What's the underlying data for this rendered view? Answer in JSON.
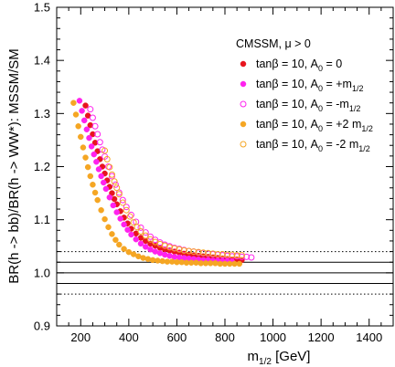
{
  "chart_data": {
    "type": "scatter",
    "xlabel_main": "m",
    "xlabel_sub": "1/2",
    "xlabel_unit": " [GeV]",
    "ylabel": "BR(h -> bb)/BR(h -> WW*): MSSM/SM",
    "xlim": [
      100,
      1500
    ],
    "ylim": [
      0.9,
      1.5
    ],
    "xticks": [
      "200",
      "400",
      "600",
      "800",
      "1000",
      "1200",
      "1400"
    ],
    "yticks": [
      "0.9",
      "1.0",
      "1.1",
      "1.2",
      "1.3",
      "1.4",
      "1.5"
    ],
    "grid": false,
    "legend_title": "CMSSM, μ > 0",
    "legend_position": "top-right",
    "reference_lines": [
      {
        "y": 1.0,
        "style": "solid"
      },
      {
        "y": 1.02,
        "style": "solid"
      },
      {
        "y": 0.98,
        "style": "solid"
      },
      {
        "y": 1.04,
        "style": "dotted"
      },
      {
        "y": 0.96,
        "style": "dotted"
      }
    ],
    "series": [
      {
        "name": "tanβ = 10, A0 = 0",
        "label_parts": [
          "tanβ = 10, A",
          "0",
          " = 0",
          ""
        ],
        "color": "#e8141e",
        "marker": "filled-circle",
        "x": [
          220,
          230,
          240,
          250,
          260,
          270,
          280,
          290,
          300,
          310,
          320,
          330,
          340,
          350,
          365,
          380,
          395,
          410,
          430,
          450,
          470,
          490,
          510,
          530,
          550,
          570,
          590,
          610,
          630,
          650,
          670,
          690,
          710,
          730,
          750,
          770,
          790,
          810,
          830,
          850,
          870
        ],
        "y": [
          1.315,
          1.296,
          1.278,
          1.261,
          1.245,
          1.229,
          1.214,
          1.2,
          1.187,
          1.174,
          1.162,
          1.15,
          1.139,
          1.129,
          1.116,
          1.104,
          1.093,
          1.083,
          1.074,
          1.066,
          1.06,
          1.055,
          1.051,
          1.047,
          1.044,
          1.042,
          1.04,
          1.038,
          1.036,
          1.034,
          1.033,
          1.032,
          1.031,
          1.03,
          1.029,
          1.028,
          1.027,
          1.026,
          1.025,
          1.025,
          1.024
        ]
      },
      {
        "name": "tanβ = 10, A0 = +m1/2",
        "label_parts": [
          "tanβ = 10, A",
          "0",
          " = +m",
          "1/2"
        ],
        "color": "#ff22ee",
        "marker": "filled-circle",
        "x": [
          195,
          205,
          215,
          225,
          235,
          245,
          255,
          265,
          275,
          285,
          295,
          305,
          320,
          335,
          350,
          365,
          380,
          395,
          410,
          430,
          450,
          470,
          490,
          510,
          530,
          550,
          570,
          590,
          610,
          630,
          650,
          670,
          690,
          710,
          730,
          750,
          770,
          790,
          810,
          830
        ],
        "y": [
          1.324,
          1.305,
          1.287,
          1.27,
          1.254,
          1.238,
          1.223,
          1.209,
          1.195,
          1.182,
          1.17,
          1.158,
          1.142,
          1.127,
          1.114,
          1.102,
          1.091,
          1.081,
          1.072,
          1.063,
          1.055,
          1.049,
          1.044,
          1.04,
          1.037,
          1.034,
          1.032,
          1.03,
          1.029,
          1.028,
          1.027,
          1.026,
          1.025,
          1.024,
          1.024,
          1.023,
          1.023,
          1.022,
          1.022,
          1.021
        ]
      },
      {
        "name": "tanβ = 10, A0 = -m1/2",
        "label_parts": [
          "tanβ = 10, A",
          "0",
          " = -m",
          "1/2"
        ],
        "color": "#ff22ee",
        "marker": "open-circle",
        "x": [
          240,
          250,
          260,
          270,
          280,
          290,
          300,
          315,
          330,
          345,
          360,
          375,
          390,
          410,
          430,
          450,
          470,
          490,
          510,
          530,
          550,
          570,
          590,
          610,
          630,
          650,
          670,
          690,
          710,
          730,
          750,
          770,
          790,
          810,
          830,
          850,
          870,
          890,
          910
        ],
        "y": [
          1.308,
          1.292,
          1.276,
          1.261,
          1.246,
          1.232,
          1.219,
          1.2,
          1.182,
          1.166,
          1.151,
          1.137,
          1.124,
          1.109,
          1.096,
          1.085,
          1.076,
          1.068,
          1.062,
          1.057,
          1.053,
          1.05,
          1.047,
          1.045,
          1.043,
          1.041,
          1.04,
          1.038,
          1.037,
          1.036,
          1.035,
          1.034,
          1.033,
          1.032,
          1.031,
          1.031,
          1.03,
          1.03,
          1.029
        ]
      },
      {
        "name": "tanβ = 10, A0 = +2 m1/2",
        "label_parts": [
          "tanβ = 10, A",
          "0",
          " = +2 m",
          "1/2"
        ],
        "color": "#f5a623",
        "marker": "filled-circle",
        "x": [
          170,
          180,
          190,
          200,
          210,
          220,
          230,
          240,
          250,
          260,
          270,
          285,
          300,
          315,
          330,
          345,
          360,
          380,
          400,
          420,
          440,
          460,
          480,
          500,
          520,
          540,
          560,
          580,
          600,
          620,
          640,
          660,
          680,
          700,
          720,
          740,
          760,
          780,
          800,
          820,
          840,
          860
        ],
        "y": [
          1.32,
          1.298,
          1.276,
          1.256,
          1.236,
          1.217,
          1.199,
          1.182,
          1.166,
          1.151,
          1.137,
          1.118,
          1.101,
          1.086,
          1.073,
          1.062,
          1.053,
          1.045,
          1.039,
          1.035,
          1.031,
          1.028,
          1.026,
          1.024,
          1.023,
          1.022,
          1.021,
          1.021,
          1.02,
          1.02,
          1.019,
          1.019,
          1.019,
          1.018,
          1.018,
          1.018,
          1.018,
          1.017,
          1.017,
          1.017,
          1.017,
          1.017
        ]
      },
      {
        "name": "tanβ = 10, A0 = -2 m1/2",
        "label_parts": [
          "tanβ = 10, A",
          "0",
          " = -2 m",
          "1/2"
        ],
        "color": "#f5a623",
        "marker": "open-circle",
        "x": [
          300,
          310,
          320,
          330,
          340,
          350,
          360,
          375,
          390,
          405,
          420,
          435,
          450,
          470,
          490,
          510,
          530,
          550,
          570,
          590,
          610,
          630,
          650,
          670,
          690,
          710,
          730,
          750,
          770,
          790,
          810,
          830,
          850,
          870
        ],
        "y": [
          1.23,
          1.214,
          1.199,
          1.185,
          1.172,
          1.16,
          1.148,
          1.132,
          1.118,
          1.106,
          1.095,
          1.086,
          1.078,
          1.07,
          1.063,
          1.058,
          1.054,
          1.051,
          1.048,
          1.046,
          1.044,
          1.042,
          1.041,
          1.04,
          1.039,
          1.038,
          1.037,
          1.036,
          1.035,
          1.035,
          1.034,
          1.034,
          1.033,
          1.033
        ]
      }
    ]
  }
}
